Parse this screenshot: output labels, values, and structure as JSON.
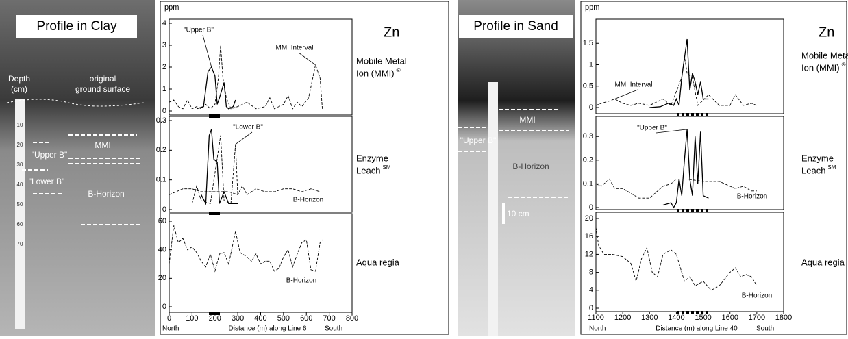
{
  "photos": [
    {
      "title": "Profile in Clay",
      "depth": [
        "Depth",
        "(cm)"
      ],
      "surface": [
        "original",
        "ground surface"
      ],
      "zones": [
        "MMI",
        "\"Upper B\"",
        "\"Lower B\"",
        "B-Horizon"
      ],
      "ruler": [
        10,
        20,
        30,
        40,
        50,
        60,
        70
      ]
    },
    {
      "title": "Profile in Sand",
      "zones": [
        "MMI",
        "\"Upper B\"",
        "B-Horizon"
      ],
      "scale": "10 cm"
    }
  ],
  "figures": [
    {
      "unit": "ppm",
      "element": "Zn",
      "x_label": "Distance (m) along Line 6",
      "north": "North",
      "south": "South"
    },
    {
      "unit": "ppm",
      "element": "Zn",
      "x_label": "Distance (m) along Line 40",
      "north": "North",
      "south": "South"
    }
  ],
  "chart_data": [
    {
      "type": "line",
      "label": [
        "Mobile Metal",
        "Ion (MMI)"
      ],
      "label_sup": "®",
      "xlim": [
        0,
        800
      ],
      "ylim": [
        0,
        4
      ],
      "yticks": [
        0,
        1,
        2,
        3,
        4
      ],
      "series": [
        {
          "name": "\"Upper B\"",
          "color": "#000",
          "dash": "solid",
          "x": [
            120,
            150,
            170,
            185,
            200,
            210,
            220,
            240,
            250,
            260,
            280,
            290
          ],
          "values": [
            0.1,
            0.2,
            1.8,
            2.0,
            1.6,
            0.3,
            0.6,
            1.3,
            0.2,
            0.1,
            0.2,
            0.5
          ]
        },
        {
          "name": "MMI Interval",
          "color": "#000",
          "dash": "dashed",
          "x": [
            0,
            20,
            40,
            60,
            80,
            100,
            120,
            140,
            160,
            180,
            200,
            215,
            225,
            235,
            250,
            270,
            300,
            340,
            380,
            420,
            440,
            460,
            480,
            500,
            520,
            540,
            560,
            580,
            610,
            640,
            660,
            670
          ],
          "values": [
            0.4,
            0.5,
            0.2,
            0.1,
            0.5,
            0.1,
            0.2,
            0.1,
            0.3,
            0.1,
            0.3,
            1.5,
            3.0,
            1.5,
            0.6,
            0.1,
            0.2,
            0.4,
            0.1,
            0.2,
            0.6,
            0.1,
            0.2,
            0.3,
            0.7,
            0.1,
            0.4,
            0.2,
            0.6,
            2.1,
            1.5,
            0.1
          ]
        }
      ]
    },
    {
      "type": "line",
      "label": [
        "Enzyme",
        "Leach"
      ],
      "label_sup": "SM",
      "xlim": [
        0,
        800
      ],
      "ylim": [
        0,
        0.3
      ],
      "yticks": [
        0,
        0.1,
        0.2,
        0.3
      ],
      "series": [
        {
          "color": "#000",
          "dash": "solid",
          "x": [
            140,
            160,
            175,
            185,
            195,
            210,
            220,
            240,
            260,
            280,
            300
          ],
          "values": [
            0.05,
            0.02,
            0.25,
            0.27,
            0.17,
            0.16,
            0.02,
            0.06,
            0.02,
            0.02,
            0.02
          ]
        },
        {
          "name": "\"Lower B\"",
          "color": "#000",
          "dash": "dashed",
          "x": [
            100,
            120,
            140,
            180,
            225,
            240,
            270,
            290,
            300
          ],
          "values": [
            0.02,
            0.08,
            0.03,
            0.02,
            0.25,
            0.03,
            0.02,
            0.22,
            0.05
          ]
        },
        {
          "name": "B-Horizon",
          "color": "#000",
          "dash": "dashed",
          "x": [
            0,
            30,
            60,
            100,
            140,
            200,
            260,
            300,
            320,
            340,
            380,
            420,
            460,
            500,
            540,
            580,
            620,
            660
          ],
          "values": [
            0.05,
            0.06,
            0.07,
            0.07,
            0.06,
            0.06,
            0.06,
            0.05,
            0.08,
            0.05,
            0.07,
            0.06,
            0.06,
            0.07,
            0.07,
            0.06,
            0.07,
            0.06
          ]
        }
      ]
    },
    {
      "type": "line",
      "label": [
        "Aqua regia"
      ],
      "xlim": [
        0,
        800
      ],
      "ylim": [
        0,
        60
      ],
      "yticks": [
        0,
        20,
        40,
        60
      ],
      "xticks": [
        0,
        100,
        200,
        300,
        400,
        500,
        600,
        700,
        800
      ],
      "series": [
        {
          "name": "B-Horizon",
          "color": "#000",
          "dash": "dashed",
          "x": [
            0,
            20,
            40,
            60,
            80,
            100,
            120,
            140,
            160,
            180,
            200,
            220,
            240,
            260,
            280,
            290,
            310,
            340,
            360,
            380,
            400,
            420,
            440,
            460,
            480,
            500,
            520,
            540,
            560,
            580,
            600,
            620,
            640,
            660,
            670
          ],
          "values": [
            30,
            57,
            45,
            48,
            40,
            42,
            38,
            32,
            28,
            37,
            25,
            37,
            38,
            30,
            45,
            53,
            38,
            35,
            32,
            37,
            30,
            32,
            32,
            25,
            27,
            35,
            40,
            28,
            37,
            45,
            47,
            26,
            25,
            45,
            47
          ]
        }
      ]
    },
    {
      "type": "line",
      "label": [
        "Mobile Metal",
        "Ion (MMI)"
      ],
      "label_sup": "®",
      "xlim": [
        1100,
        1800
      ],
      "ylim": [
        0,
        2
      ],
      "yticks": [
        0,
        0.5,
        1,
        1.5
      ],
      "series": [
        {
          "color": "#000",
          "dash": "solid",
          "x": [
            1300,
            1340,
            1370,
            1390,
            1400,
            1410,
            1420,
            1440,
            1450,
            1460,
            1470,
            1480,
            1490,
            1500,
            1520
          ],
          "values": [
            0,
            0.02,
            0.1,
            0.05,
            0.2,
            0.05,
            0.7,
            1.6,
            0.4,
            0.8,
            0.6,
            0.3,
            0.6,
            0.2,
            0.2
          ]
        },
        {
          "name": "MMI Interval",
          "color": "#000",
          "dash": "dashed",
          "x": [
            1100,
            1120,
            1150,
            1170,
            1200,
            1230,
            1260,
            1300,
            1350,
            1380,
            1420,
            1430,
            1440,
            1460,
            1480,
            1520,
            1560,
            1600,
            1620,
            1650,
            1680,
            1700
          ],
          "values": [
            0.05,
            0.1,
            0.15,
            0.2,
            0.1,
            0.05,
            0.1,
            0.05,
            0.2,
            0.05,
            0.7,
            1.2,
            0.8,
            0.7,
            0.05,
            0.3,
            0.05,
            0.05,
            0.3,
            0.05,
            0.1,
            0.05
          ]
        }
      ]
    },
    {
      "type": "line",
      "label": [
        "Enzyme",
        "Leach"
      ],
      "label_sup": "SM",
      "xlim": [
        1100,
        1800
      ],
      "ylim": [
        0,
        0.37
      ],
      "yticks": [
        0,
        0.1,
        0.2,
        0.3
      ],
      "series": [
        {
          "name": "\"Upper B\"",
          "color": "#000",
          "dash": "solid",
          "x": [
            1350,
            1380,
            1390,
            1400,
            1410,
            1420,
            1430,
            1440,
            1450,
            1460,
            1470,
            1480,
            1490,
            1500,
            1520
          ],
          "values": [
            0.01,
            0.02,
            0,
            0.02,
            0.12,
            0.05,
            0.2,
            0.33,
            0.12,
            0.05,
            0.3,
            0.1,
            0.32,
            0.05,
            0.04
          ]
        },
        {
          "name": "B-Horizon",
          "color": "#000",
          "dash": "dashed",
          "x": [
            1100,
            1120,
            1150,
            1170,
            1200,
            1230,
            1260,
            1300,
            1350,
            1380,
            1400,
            1440,
            1500,
            1560,
            1600,
            1620,
            1650,
            1680,
            1700
          ],
          "values": [
            0.1,
            0.09,
            0.12,
            0.08,
            0.08,
            0.06,
            0.04,
            0.04,
            0.09,
            0.1,
            0.12,
            0.12,
            0.11,
            0.11,
            0.09,
            0.08,
            0.09,
            0.07,
            0.07
          ]
        }
      ]
    },
    {
      "type": "line",
      "label": [
        "Aqua regia"
      ],
      "xlim": [
        1100,
        1800
      ],
      "ylim": [
        0,
        20
      ],
      "yticks": [
        0,
        4,
        8,
        12,
        16,
        20
      ],
      "xticks": [
        1100,
        1200,
        1300,
        1400,
        1500,
        1600,
        1700,
        1800
      ],
      "series": [
        {
          "name": "B-Horizon",
          "color": "#000",
          "dash": "dashed",
          "x": [
            1100,
            1110,
            1130,
            1160,
            1200,
            1230,
            1250,
            1270,
            1290,
            1310,
            1330,
            1350,
            1380,
            1400,
            1430,
            1450,
            1470,
            1500,
            1530,
            1560,
            1600,
            1620,
            1640,
            1660,
            1680,
            1700
          ],
          "values": [
            18,
            14,
            12,
            12,
            11.5,
            10,
            6,
            11,
            13.5,
            8,
            7,
            12,
            13,
            12,
            6,
            7,
            5,
            6,
            4,
            5,
            8,
            9,
            7,
            7.5,
            7,
            5
          ]
        }
      ]
    }
  ]
}
